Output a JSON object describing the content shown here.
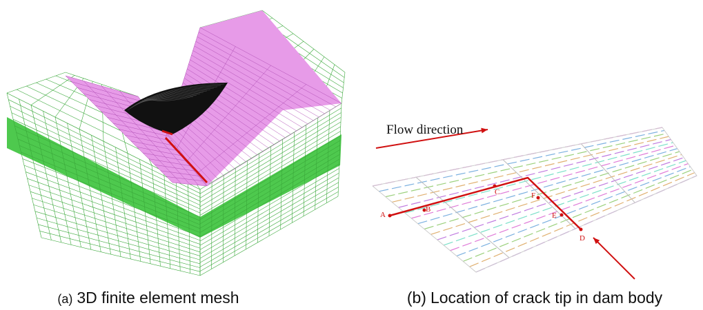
{
  "panels": [
    {
      "caption_tag": "(a)",
      "caption": "3D finite element mesh"
    },
    {
      "caption_tag": "(b)",
      "caption": "Location of crack tip in dam body",
      "annotation": "Flow direction",
      "points": [
        "A",
        "B",
        "C",
        "D",
        "E",
        "F"
      ]
    }
  ]
}
